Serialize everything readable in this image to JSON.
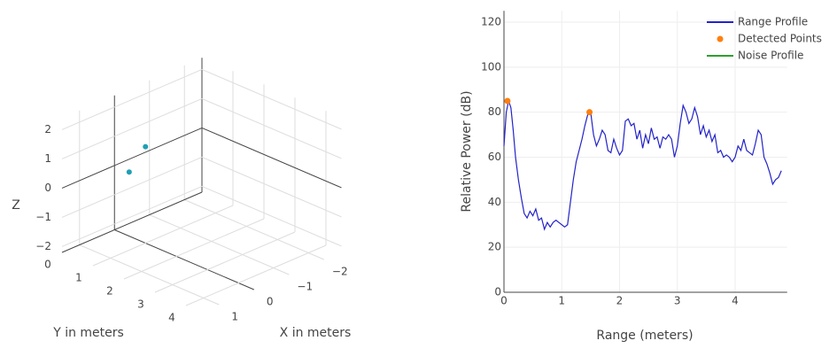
{
  "chart_data": [
    {
      "type": "scatter3d",
      "xlabel": "X in meters",
      "ylabel": "Y in meters",
      "zlabel": "Z",
      "x": [
        0.2,
        0
      ],
      "y": [
        0.7,
        1.0
      ],
      "z": [
        0.2,
        1.1
      ],
      "color": "#1f9fb4",
      "xlim": [
        -2.5,
        1.5
      ],
      "ylim": [
        0,
        4.5
      ],
      "zlim": [
        -2.2,
        2.4
      ],
      "xticks": [
        {
          "value": -2,
          "label": "−2"
        },
        {
          "value": -1,
          "label": "−1"
        },
        0,
        1
      ],
      "yticks": [
        0,
        1,
        2,
        3,
        4
      ],
      "zticks": [
        {
          "value": -2,
          "label": "−2"
        },
        {
          "value": -1,
          "label": "−1"
        },
        0,
        1,
        2
      ],
      "grid": true
    },
    {
      "type": "line",
      "xlabel": "Range (meters)",
      "ylabel": "Relative Power (dB)",
      "xlim": [
        0,
        4.9
      ],
      "ylim": [
        0,
        125
      ],
      "xticks": [
        0,
        1,
        2,
        3,
        4
      ],
      "yticks": [
        0,
        20,
        40,
        60,
        80,
        100,
        120
      ],
      "grid": true,
      "legend": "top-right",
      "series": [
        {
          "name": "Range Profile",
          "color": "#2323c8",
          "mode": "lines",
          "x": [
            0,
            0.04,
            0.08,
            0.12,
            0.16,
            0.2,
            0.25,
            0.3,
            0.35,
            0.4,
            0.45,
            0.5,
            0.55,
            0.6,
            0.65,
            0.7,
            0.75,
            0.8,
            0.85,
            0.9,
            0.95,
            1.0,
            1.05,
            1.1,
            1.15,
            1.2,
            1.25,
            1.3,
            1.35,
            1.4,
            1.45,
            1.5,
            1.55,
            1.6,
            1.65,
            1.7,
            1.75,
            1.8,
            1.85,
            1.9,
            1.95,
            2.0,
            2.05,
            2.1,
            2.15,
            2.2,
            2.25,
            2.3,
            2.35,
            2.4,
            2.45,
            2.5,
            2.55,
            2.6,
            2.65,
            2.7,
            2.75,
            2.8,
            2.85,
            2.9,
            2.95,
            3.0,
            3.05,
            3.1,
            3.15,
            3.2,
            3.25,
            3.3,
            3.35,
            3.4,
            3.45,
            3.5,
            3.55,
            3.6,
            3.65,
            3.7,
            3.75,
            3.8,
            3.85,
            3.9,
            3.95,
            4.0,
            4.05,
            4.1,
            4.15,
            4.2,
            4.25,
            4.3,
            4.35,
            4.4,
            4.45,
            4.5,
            4.55,
            4.6,
            4.65,
            4.7,
            4.75,
            4.8
          ],
          "values": [
            65,
            80,
            85,
            82,
            72,
            60,
            50,
            42,
            35,
            33,
            36,
            34,
            37,
            32,
            33,
            28,
            31,
            29,
            31,
            32,
            31,
            30,
            29,
            30,
            40,
            50,
            58,
            63,
            68,
            74,
            79,
            80,
            70,
            65,
            68,
            72,
            70,
            63,
            62,
            68,
            64,
            61,
            63,
            76,
            77,
            74,
            75,
            68,
            72,
            64,
            70,
            66,
            73,
            68,
            69,
            64,
            69,
            68,
            70,
            68,
            60,
            65,
            75,
            83,
            80,
            75,
            77,
            82,
            78,
            70,
            74,
            69,
            72,
            67,
            70,
            62,
            63,
            60,
            61,
            60,
            58,
            60,
            65,
            63,
            68,
            63,
            62,
            61,
            66,
            72,
            70,
            60,
            57,
            53,
            48,
            50,
            51,
            54
          ]
        },
        {
          "name": "Detected Points",
          "color": "#ff7f0e",
          "mode": "markers",
          "x": [
            0.06,
            1.48
          ],
          "values": [
            85,
            80
          ]
        },
        {
          "name": "Noise Profile",
          "color": "#2ca02c",
          "mode": "lines",
          "x": [],
          "values": []
        }
      ]
    }
  ]
}
